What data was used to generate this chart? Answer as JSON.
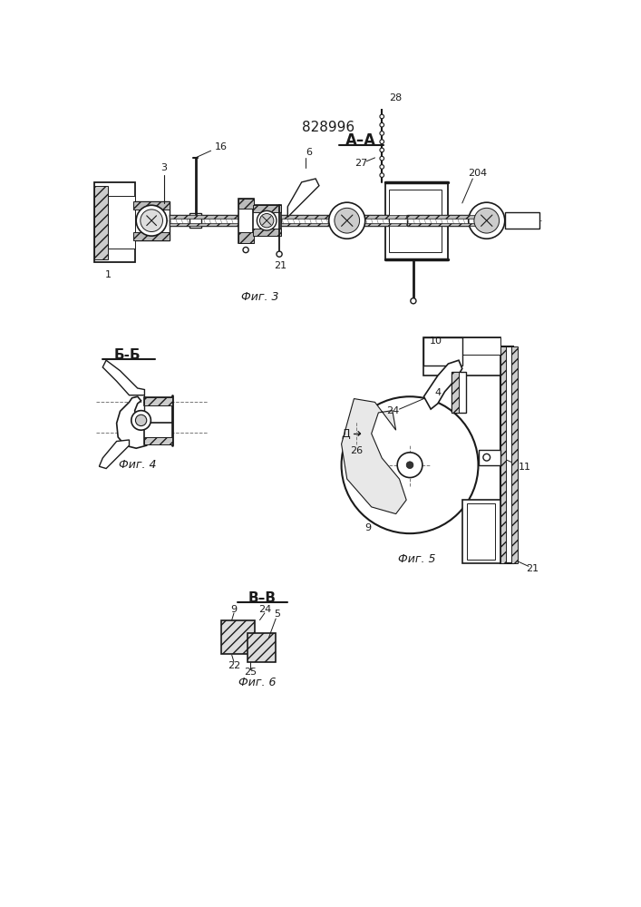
{
  "patent_number": "828996",
  "fig3_label": "А–А",
  "fig3_caption": "Фиг. 3",
  "fig4_label": "Б-Б",
  "fig4_caption": "Фиг. 4",
  "fig5_caption": "Фиг. 5",
  "fig6_label": "В–В",
  "fig6_caption": "Фиг. 6",
  "bg_color": "#ffffff",
  "line_color": "#1a1a1a",
  "text_color": "#1a1a1a"
}
